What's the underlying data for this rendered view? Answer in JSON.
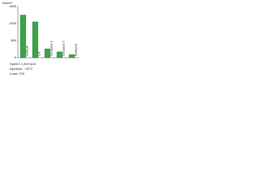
{
  "chart_data": {
    "type": "bar",
    "y_label": "N/mm²",
    "categories": [
      "Default",
      "CA",
      "Greased 1",
      "Greased 2",
      "Bumped"
    ],
    "values": [
      1250,
      1050,
      260,
      170,
      90
    ],
    "color": "#3aa346",
    "ylim": [
      0,
      1500
    ],
    "yticks": [
      0,
      500,
      1000,
      1500
    ],
    "notes": [
      "Speed: 1,500 rpm",
      "Injection: ~20°C",
      "Load: 700"
    ]
  }
}
